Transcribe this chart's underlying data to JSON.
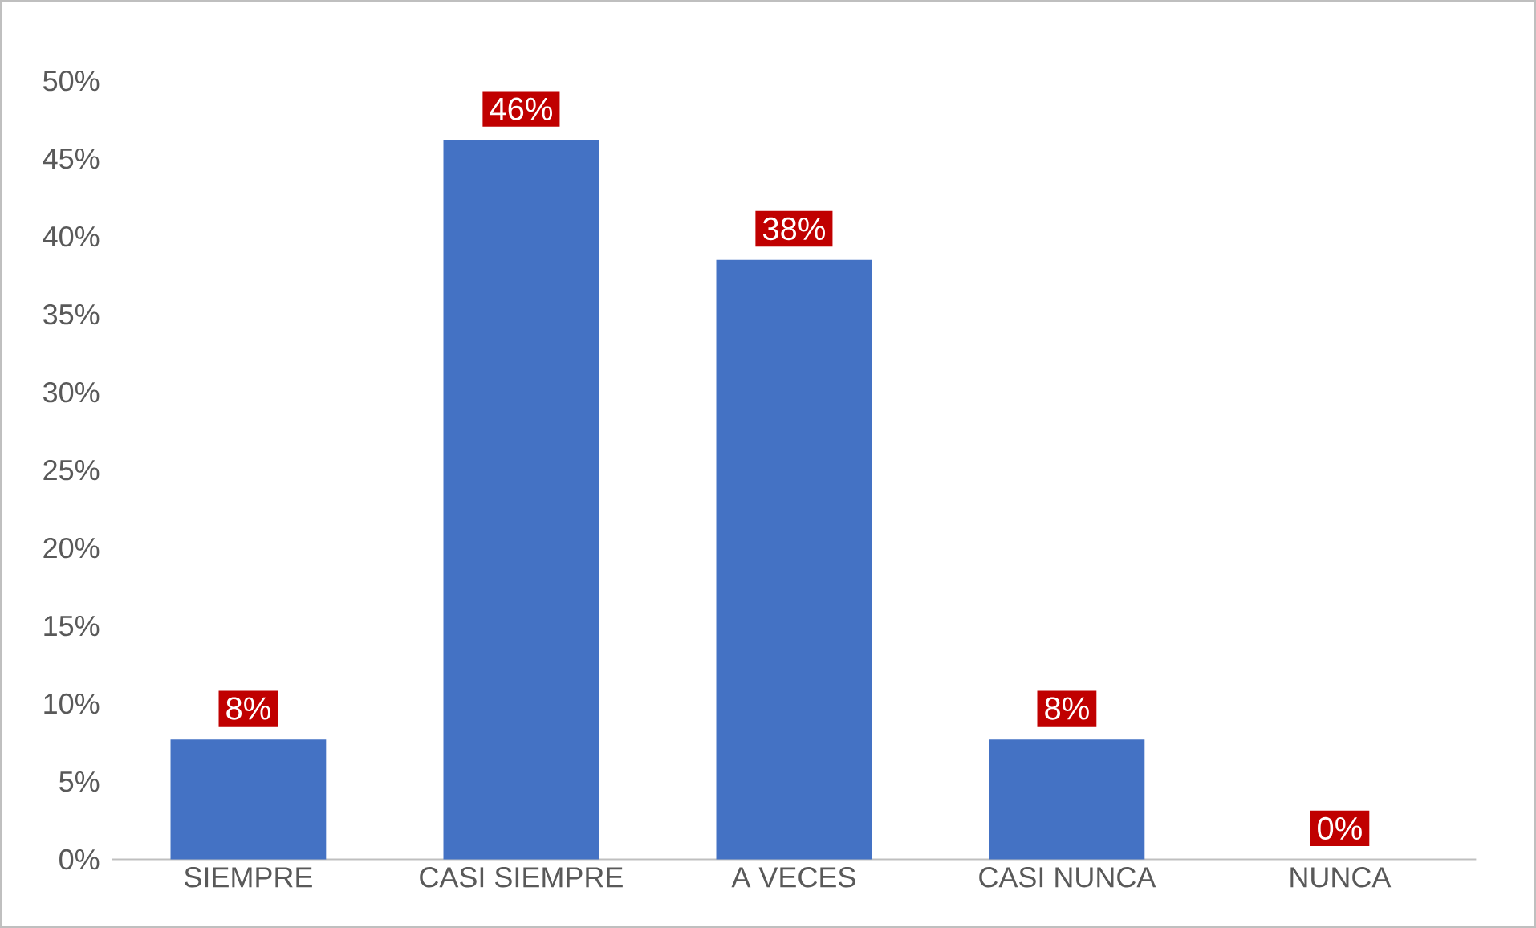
{
  "chart_data": {
    "type": "bar",
    "categories": [
      "SIEMPRE",
      "CASI SIEMPRE",
      "A VECES",
      "CASI NUNCA",
      "NUNCA"
    ],
    "values": [
      7.7,
      46.2,
      38.5,
      7.7,
      0
    ],
    "value_labels": [
      "8%",
      "46%",
      "38%",
      "8%",
      "0%"
    ],
    "color": "#4472c4",
    "ylim": [
      0,
      50
    ],
    "yticks": [
      {
        "value": 0,
        "label": "0%"
      },
      {
        "value": 5,
        "label": "5%"
      },
      {
        "value": 10,
        "label": "10%"
      },
      {
        "value": 15,
        "label": "15%"
      },
      {
        "value": 20,
        "label": "20%"
      },
      {
        "value": 25,
        "label": "25%"
      },
      {
        "value": 30,
        "label": "30%"
      },
      {
        "value": 35,
        "label": "35%"
      },
      {
        "value": 40,
        "label": "40%"
      },
      {
        "value": 45,
        "label": "45%"
      },
      {
        "value": 50,
        "label": "50%"
      }
    ]
  }
}
